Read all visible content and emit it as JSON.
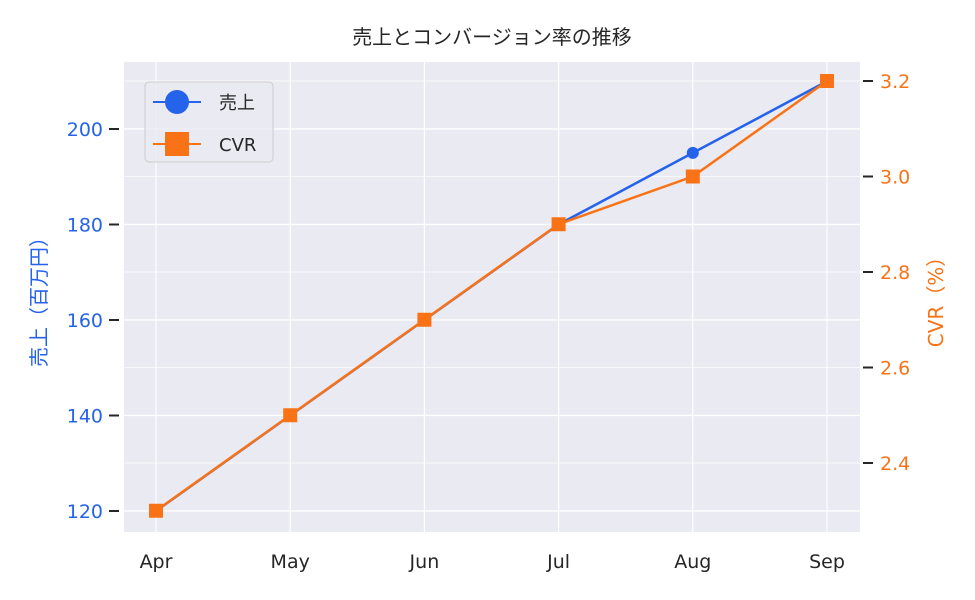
{
  "chart_data": {
    "type": "line",
    "title": "売上とコンバージョン率の推移",
    "categories": [
      "Apr",
      "May",
      "Jun",
      "Jul",
      "Aug",
      "Sep"
    ],
    "series": [
      {
        "name": "売上",
        "axis": "left",
        "color": "#2563eb",
        "marker": "circle",
        "values": [
          120,
          140,
          160,
          180,
          195,
          210
        ]
      },
      {
        "name": "CVR",
        "axis": "right",
        "color": "#f97316",
        "marker": "square",
        "values": [
          2.3,
          2.5,
          2.7,
          2.9,
          3.0,
          3.2
        ]
      }
    ],
    "xlabel": "",
    "ylabel": "売上（百万円）",
    "ylabel_right": "CVR（%）",
    "ylim": [
      115,
      213
    ],
    "ylim_right": [
      2.25,
      3.23
    ],
    "yticks": [
      120,
      140,
      160,
      180,
      200
    ],
    "yticks_right": [
      "2.4",
      "2.6",
      "2.8",
      "3.0",
      "3.2"
    ],
    "grid": true,
    "legend_position": "upper left",
    "style": "seaborn-darkgrid"
  },
  "colors": {
    "background": "#eaeaf2",
    "grid": "#ffffff",
    "sales": "#2563eb",
    "cvr": "#f97316"
  }
}
